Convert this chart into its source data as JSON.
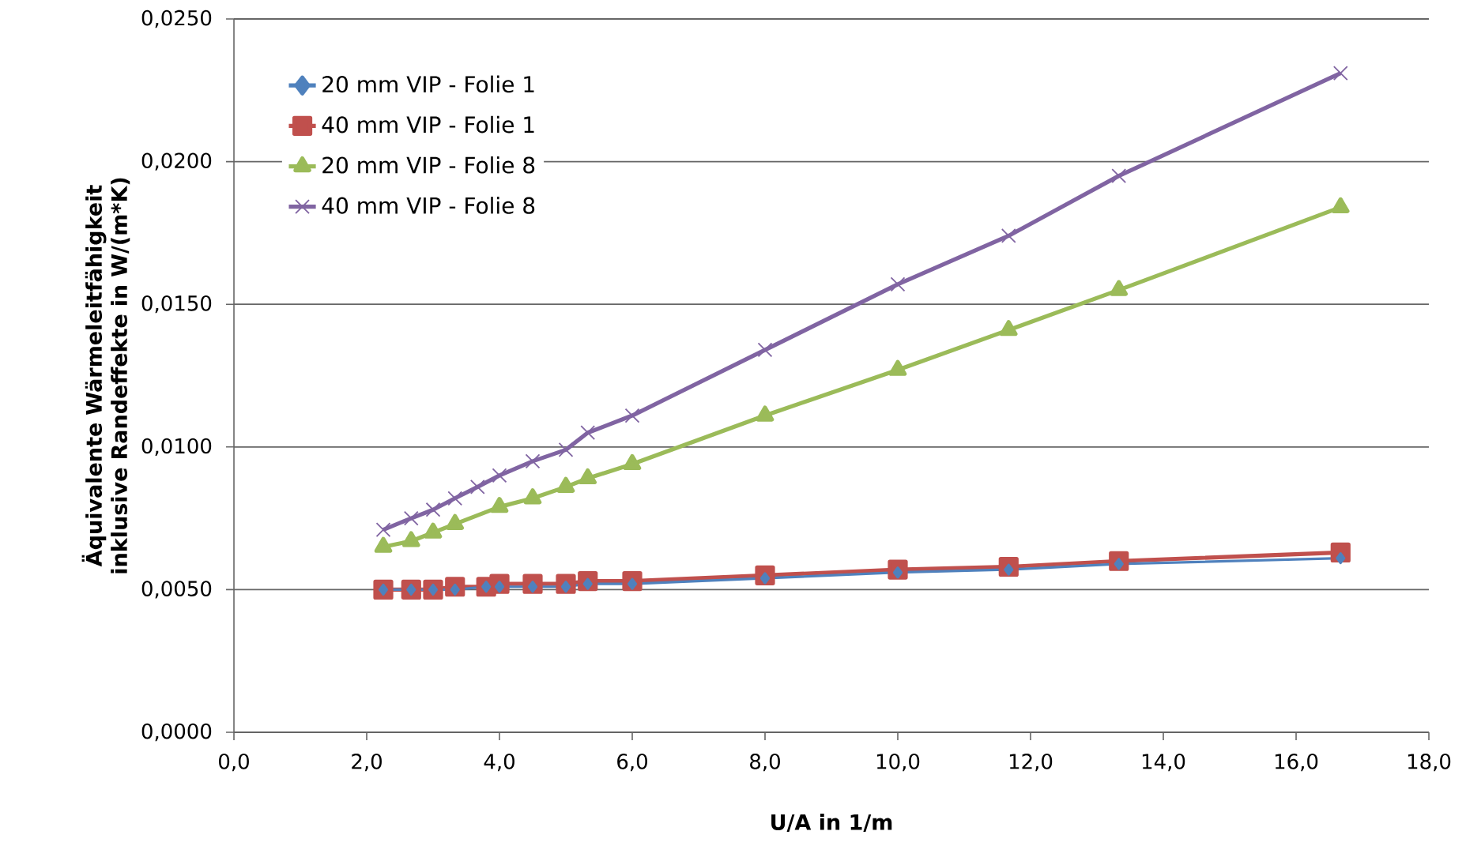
{
  "chart_data": {
    "type": "line",
    "xlabel": "U/A  in 1/m",
    "ylabel": "Äquivalente Wärmeleitfähigkeit inklusive Randeffekte in W/(m*K)",
    "xlim": [
      0,
      18
    ],
    "ylim": [
      0,
      0.025
    ],
    "xticks": [
      {
        "value": 0,
        "label": "0,0"
      },
      {
        "value": 2,
        "label": "2,0"
      },
      {
        "value": 4,
        "label": "4,0"
      },
      {
        "value": 6,
        "label": "6,0"
      },
      {
        "value": 8,
        "label": "8,0"
      },
      {
        "value": 10,
        "label": "10,0"
      },
      {
        "value": 12,
        "label": "12,0"
      },
      {
        "value": 14,
        "label": "14,0"
      },
      {
        "value": 16,
        "label": "16,0"
      },
      {
        "value": 18,
        "label": "18,0"
      }
    ],
    "yticks": [
      {
        "value": 0,
        "label": "0,0000"
      },
      {
        "value": 0.005,
        "label": "0,0050"
      },
      {
        "value": 0.01,
        "label": "0,0100"
      },
      {
        "value": 0.015,
        "label": "0,0150"
      },
      {
        "value": 0.02,
        "label": "0,0200"
      },
      {
        "value": 0.025,
        "label": "0,0250"
      }
    ],
    "grid": "y",
    "legend": "top left",
    "series": [
      {
        "name": "20 mm VIP - Folie 1",
        "color": "#4f81bd",
        "marker": "diamond",
        "x": [
          2.25,
          2.67,
          3.0,
          3.33,
          3.8,
          4.0,
          4.5,
          5.0,
          5.33,
          6.0,
          8.0,
          10.0,
          11.67,
          13.33,
          16.67
        ],
        "values": [
          0.005,
          0.005,
          0.005,
          0.005,
          0.0051,
          0.0051,
          0.0051,
          0.0051,
          0.0052,
          0.0052,
          0.0054,
          0.0056,
          0.0057,
          0.0059,
          0.0061
        ]
      },
      {
        "name": "40 mm VIP - Folie 1",
        "color": "#c0504d",
        "marker": "square",
        "x": [
          2.25,
          2.67,
          3.0,
          3.33,
          3.8,
          4.0,
          4.5,
          5.0,
          5.33,
          6.0,
          8.0,
          10.0,
          11.67,
          13.33,
          16.67
        ],
        "values": [
          0.005,
          0.005,
          0.005,
          0.0051,
          0.0051,
          0.0052,
          0.0052,
          0.0052,
          0.0053,
          0.0053,
          0.0055,
          0.0057,
          0.0058,
          0.006,
          0.0063
        ]
      },
      {
        "name": "20 mm VIP - Folie 8",
        "color": "#9bbb59",
        "marker": "triangle",
        "x": [
          2.25,
          2.67,
          3.0,
          3.33,
          4.0,
          4.5,
          5.0,
          5.33,
          6.0,
          8.0,
          10.0,
          11.67,
          13.33,
          16.67
        ],
        "values": [
          0.0065,
          0.0067,
          0.007,
          0.0073,
          0.0079,
          0.0082,
          0.0086,
          0.0089,
          0.0094,
          0.0111,
          0.0127,
          0.0141,
          0.0155,
          0.0184
        ]
      },
      {
        "name": "40 mm VIP - Folie 8",
        "color": "#8064a2",
        "marker": "cross",
        "x": [
          2.25,
          2.67,
          3.0,
          3.33,
          3.67,
          4.0,
          4.5,
          5.0,
          5.33,
          6.0,
          8.0,
          10.0,
          11.67,
          13.33,
          16.67
        ],
        "values": [
          0.0071,
          0.0075,
          0.0078,
          0.0082,
          0.0086,
          0.009,
          0.0095,
          0.0099,
          0.0105,
          0.0111,
          0.0134,
          0.0157,
          0.0174,
          0.0195,
          0.0231
        ]
      }
    ]
  }
}
